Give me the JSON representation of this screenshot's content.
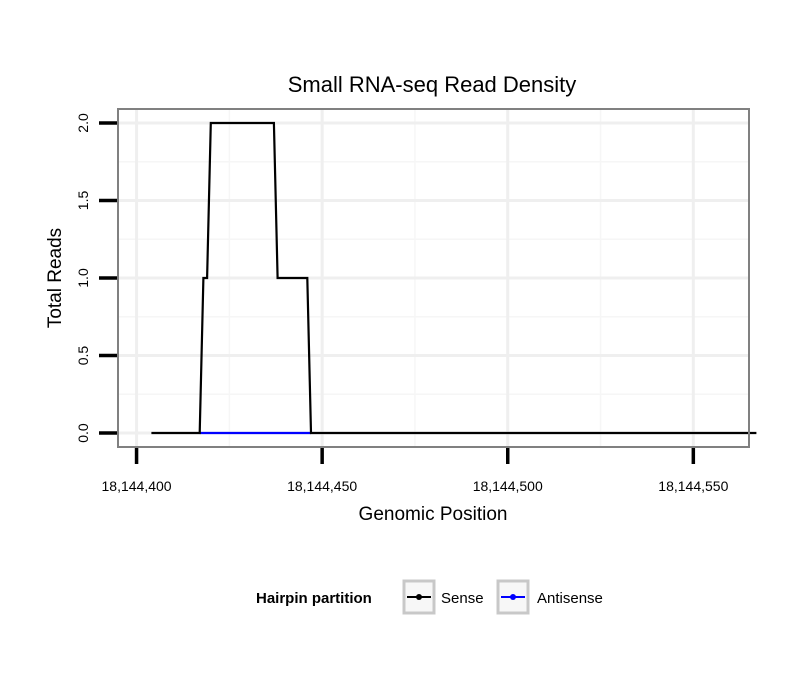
{
  "chart_data": {
    "type": "line",
    "title": "Small RNA-seq Read Density",
    "xlabel": "Genomic Position",
    "ylabel": "Total Reads",
    "xlim": [
      18144395,
      18144565
    ],
    "ylim": [
      -0.09,
      2.09
    ],
    "x_ticks": [
      18144400,
      18144450,
      18144500,
      18144550
    ],
    "x_tick_labels": [
      "18,144,400",
      "18,144,450",
      "18,144,500",
      "18,144,550"
    ],
    "y_ticks": [
      0,
      0.5,
      1,
      1.5,
      2
    ],
    "y_tick_labels": [
      "0.0",
      "0.5",
      "1.0",
      "1.5",
      "2.0"
    ],
    "grid": true,
    "legend": {
      "title": "Hairpin partition",
      "position": "bottom",
      "entries": [
        "Sense",
        "Antisense"
      ]
    },
    "series": [
      {
        "name": "Sense",
        "color": "#000000",
        "x": [
          18144404,
          18144417,
          18144418,
          18144419,
          18144420,
          18144437,
          18144438,
          18144446,
          18144447,
          18144567
        ],
        "y": [
          0,
          0,
          1,
          1,
          2,
          2,
          1,
          1,
          0,
          0
        ]
      },
      {
        "name": "Antisense",
        "color": "#0000ff",
        "x": [
          18144417,
          18144447
        ],
        "y": [
          0,
          0
        ]
      }
    ]
  }
}
